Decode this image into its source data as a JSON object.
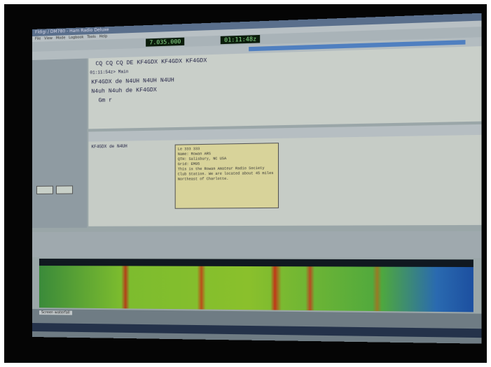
{
  "window": {
    "title": "Fldigi / DM780 - Ham Radio Deluxe"
  },
  "toolbar": {
    "frequency": "7.035.000",
    "time": "01:11:48z"
  },
  "receive": {
    "lines": [
      "CQ CQ CQ DE KF4GDX KF4GDX KF4GDX",
      "01:11:54z> Main",
      "KF4GDX de N4UH N4UH N4UH",
      "N4uh N4uh de KF4GDX",
      "Gm r"
    ]
  },
  "transmit": {
    "text": "KF4GDX de N4UH"
  },
  "tooltip": {
    "lines": [
      "Le 333 333",
      "Name:   Rowan ARS",
      "QTH:    Salisbury, NC USA",
      "Grid:   EM95",
      "This is the Rowan Amateur Radio Society",
      "Club Station. We are located about 45 miles",
      "Northeast of Charlotte."
    ]
  },
  "status": {
    "left": "Screen waterfall"
  }
}
